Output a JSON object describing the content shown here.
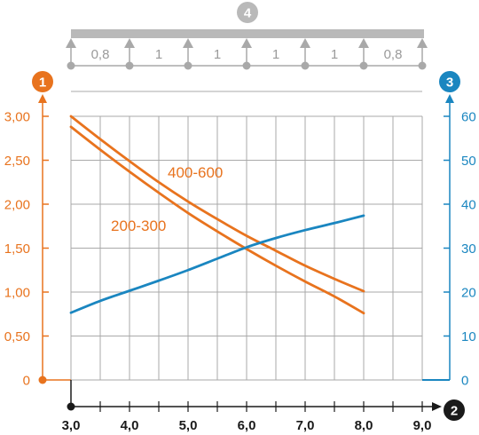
{
  "colors": {
    "orange": "#e8731e",
    "blue": "#1a86c0",
    "grid": "#a9a9a9",
    "beam": "#b9b9b9",
    "support": "#a9a9a9",
    "span_text": "#9a9a9a",
    "axis_dark": "#1a1a1a"
  },
  "markers": {
    "left_axis": "1",
    "right_axis": "3",
    "x_axis": "2",
    "beam": "4"
  },
  "beam": {
    "span_labels": [
      "0,8",
      "1",
      "1",
      "1",
      "1",
      "0,8"
    ]
  },
  "chart_data": {
    "type": "line",
    "x_ticks": [
      "3,0",
      "4,0",
      "5,0",
      "6,0",
      "7,0",
      "8,0",
      "9,0"
    ],
    "x_tick_values": [
      3,
      4,
      5,
      6,
      7,
      8,
      9
    ],
    "xlim": [
      3,
      9
    ],
    "y_left_ticks": [
      "0",
      "0,50",
      "1,00",
      "1,50",
      "2,00",
      "2,50",
      "3,00"
    ],
    "y_left_tick_values": [
      0,
      0.5,
      1.0,
      1.5,
      2.0,
      2.5,
      3.0
    ],
    "y_left_lim": [
      0,
      3
    ],
    "y_right_ticks": [
      "0",
      "10",
      "20",
      "30",
      "40",
      "50",
      "60"
    ],
    "y_right_tick_values": [
      0,
      10,
      20,
      30,
      40,
      50,
      60
    ],
    "y_right_lim": [
      0,
      60
    ],
    "grid": true,
    "series": [
      {
        "name": "400-600",
        "axis": "left",
        "color": "#e8731e",
        "x": [
          3.0,
          3.5,
          4.0,
          4.5,
          5.0,
          5.5,
          6.0,
          6.5,
          7.0,
          7.5,
          8.0
        ],
        "y": [
          3.0,
          2.74,
          2.49,
          2.25,
          2.03,
          1.83,
          1.64,
          1.47,
          1.3,
          1.15,
          1.01
        ]
      },
      {
        "name": "200-300",
        "axis": "left",
        "color": "#e8731e",
        "x": [
          3.0,
          3.5,
          4.0,
          4.5,
          5.0,
          5.5,
          6.0,
          6.5,
          7.0,
          7.5,
          8.0
        ],
        "y": [
          2.88,
          2.62,
          2.37,
          2.13,
          1.9,
          1.69,
          1.49,
          1.3,
          1.12,
          0.95,
          0.76
        ]
      },
      {
        "name": "",
        "axis": "right",
        "color": "#1a86c0",
        "x": [
          3.0,
          3.5,
          4.0,
          4.5,
          5.0,
          5.5,
          6.0,
          6.5,
          7.0,
          7.5,
          8.0
        ],
        "y": [
          15.3,
          18.0,
          20.3,
          22.6,
          25.0,
          27.6,
          30.2,
          32.3,
          34.1,
          35.7,
          37.4
        ]
      }
    ]
  }
}
